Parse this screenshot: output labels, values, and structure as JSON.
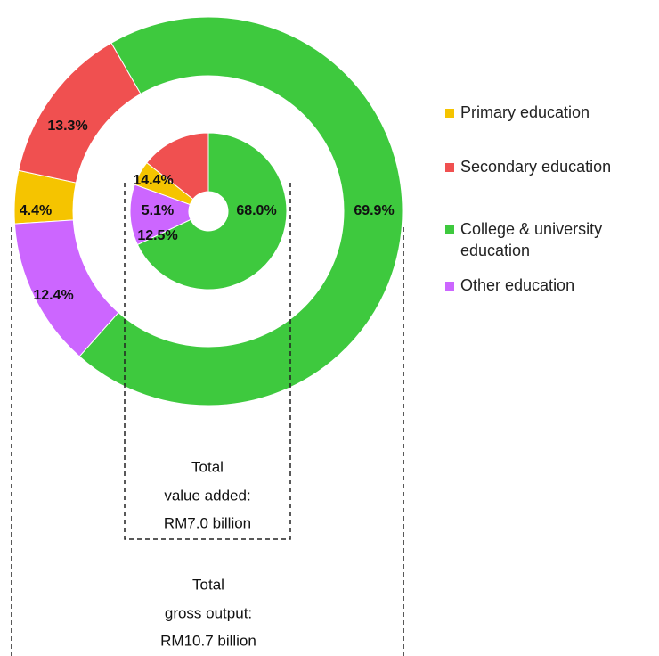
{
  "chart_data": [
    {
      "type": "donut",
      "title": [
        "Total",
        "gross output:",
        "RM10.7 billion"
      ],
      "categories": [
        "Primary education",
        "Secondary education",
        "College & university education",
        "Other education"
      ],
      "colors": [
        "#f5c400",
        "#f05050",
        "#3ec93e",
        "#cc66ff"
      ],
      "values": [
        4.4,
        13.3,
        69.9,
        12.4
      ],
      "value_labels": [
        "4.4%",
        "13.3%",
        "69.9%",
        "12.4%"
      ]
    },
    {
      "type": "donut",
      "title": [
        "Total",
        "value added:",
        "RM7.0 billion"
      ],
      "values": [
        5.1,
        14.4,
        68.0,
        12.5
      ],
      "value_labels": [
        "5.1%",
        "14.4%",
        "68.0%",
        "12.5%"
      ]
    }
  ]
}
